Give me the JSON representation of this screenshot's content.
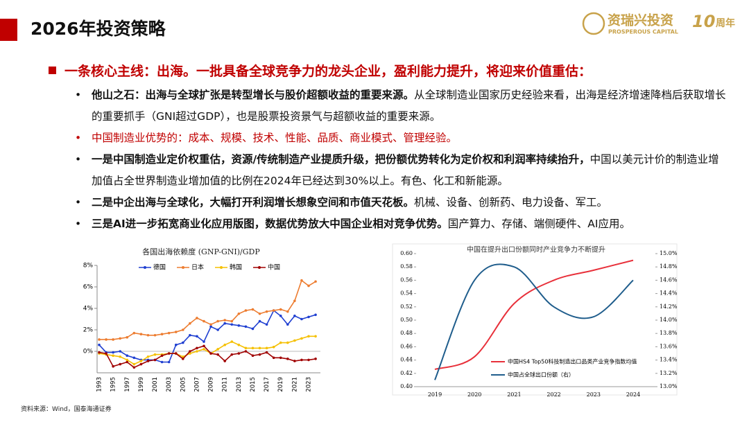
{
  "header": {
    "title": "2026年投资策略",
    "logo_name": "资瑞兴投资",
    "logo_en": "PROSPEROUS CAPITAL",
    "anniversary_number": "10",
    "anniversary_text": "周年"
  },
  "headline": "一条核心主线：出海。一批具备全球竞争力的龙头企业，盈利能力提升，将迎来价值重估：",
  "bullets": [
    {
      "segments": [
        {
          "text": "他山之石：出海与全球扩张是转型增长与股价超额收益的重要来源。",
          "bold": true
        },
        {
          "text": "从全球制造业国家历史经验来看，出海是经济增速降档后获取增长的重要抓手（GNI超过GDP），也是股票投资景气与超额收益的重要来源。",
          "bold": false
        }
      ]
    },
    {
      "color": "#c00000",
      "segments": [
        {
          "text": "中国制造业优势的：成本、规模、技术、性能、品质、商业模式、管理经验。",
          "bold": false
        }
      ]
    },
    {
      "segments": [
        {
          "text": "一是中国制造业定价权重估，资源/传统制造产业提质升级，把份额优势转化为定价权和利润率持续抬升，",
          "bold": true
        },
        {
          "text": "中国以美元计价的制造业增加值占全世界制造业增加值的比例在2024年已经达到30%以上。有色、化工和新能源。",
          "bold": false
        }
      ]
    },
    {
      "segments": [
        {
          "text": "二是中企出海与全球化，大幅打开利润增长想象空间和市值天花板。",
          "bold": true
        },
        {
          "text": "机械、设备、创新药、电力设备、军工。",
          "bold": false
        }
      ]
    },
    {
      "segments": [
        {
          "text": "三是AI进一步拓宽商业化应用版图，数据优势放大中国企业相对竞争优势。",
          "bold": true
        },
        {
          "text": "国产算力、存储、端侧硬件、AI应用。",
          "bold": false
        }
      ]
    }
  ],
  "source": "资料来源：Wind，国泰海通证券",
  "chart_data": [
    {
      "type": "line",
      "title": "各国出海依赖度 (GNP-GNI)/GDP",
      "categories": [
        "1993",
        null,
        "1995",
        null,
        "1997",
        null,
        "1999",
        null,
        "2001",
        null,
        "2003",
        null,
        "2005",
        null,
        "2007",
        null,
        "2009",
        null,
        "2011",
        null,
        "2013",
        null,
        "2015",
        null,
        "2017",
        null,
        "2019",
        null,
        "2021",
        null,
        "2023",
        null
      ],
      "ylim": [
        -2,
        8
      ],
      "yticks": [
        {
          "value": 0,
          "label": "0%"
        },
        {
          "value": 2,
          "label": "2%"
        },
        {
          "value": 4,
          "label": "4%"
        },
        {
          "value": 6,
          "label": "6%"
        },
        {
          "value": 8,
          "label": "8%"
        }
      ],
      "series": [
        {
          "name": "德国",
          "color": "#1f3fd1",
          "values": [
            0.6,
            -0.1,
            -0.1,
            0.0,
            -0.4,
            -0.6,
            -0.8,
            -0.8,
            -0.8,
            -1.0,
            -1.0,
            0.6,
            0.8,
            1.5,
            1.4,
            0.9,
            2.3,
            2.0,
            2.6,
            2.5,
            2.4,
            2.3,
            2.1,
            2.8,
            2.5,
            3.8,
            3.3,
            2.5,
            3.3,
            3.0,
            3.2,
            3.4
          ]
        },
        {
          "name": "日本",
          "color": "#ed7d31",
          "values": [
            1.1,
            1.1,
            1.1,
            1.2,
            1.3,
            1.7,
            1.6,
            1.5,
            1.5,
            1.6,
            1.7,
            1.8,
            2.0,
            2.6,
            3.1,
            2.8,
            2.5,
            2.8,
            2.9,
            2.8,
            3.5,
            3.8,
            3.9,
            3.5,
            3.7,
            3.8,
            3.9,
            3.7,
            4.7,
            6.6,
            6.1,
            6.5
          ]
        },
        {
          "name": "韩国",
          "color": "#f5c000",
          "values": [
            -0.2,
            -0.3,
            -0.4,
            -0.5,
            -0.8,
            -1.2,
            -0.9,
            -0.5,
            -0.3,
            -0.3,
            -0.2,
            -0.2,
            -0.5,
            -0.2,
            0.0,
            0.2,
            -0.2,
            0.2,
            0.6,
            0.9,
            0.6,
            0.3,
            0.3,
            0.3,
            0.3,
            0.4,
            0.8,
            0.8,
            1.0,
            1.2,
            1.4,
            1.4
          ]
        },
        {
          "name": "中国",
          "color": "#a00000",
          "values": [
            -0.1,
            -0.2,
            -1.4,
            -1.2,
            -1.0,
            -1.5,
            -1.2,
            -0.9,
            -0.8,
            -0.4,
            -0.2,
            -0.2,
            -0.7,
            0.0,
            0.3,
            0.5,
            -0.2,
            -0.3,
            -0.9,
            -0.3,
            -0.2,
            0.0,
            -0.4,
            -0.3,
            -0.1,
            -0.6,
            -0.6,
            -0.7,
            -0.9,
            -0.8,
            -0.8,
            -0.7
          ]
        }
      ]
    },
    {
      "type": "smooth-line",
      "title": "中国在提升出口份额同时产业竞争力不断提升",
      "categories": [
        "2019",
        "2020",
        "2021",
        "2022",
        "2023",
        "2024"
      ],
      "ylim": [
        0.4,
        0.6
      ],
      "yticks": [
        {
          "value": 0.4,
          "label": "0.40"
        },
        0.42,
        0.44,
        0.46,
        0.48,
        {
          "value": 0.5,
          "label": "0.50"
        },
        0.52,
        0.54,
        0.56,
        0.58,
        {
          "value": 0.6,
          "label": "0.60"
        }
      ],
      "y2lim": [
        13,
        15
      ],
      "y2ticks": [
        {
          "value": 13,
          "label": "13.0%"
        },
        {
          "value": 13.2,
          "label": "13.2%"
        },
        {
          "value": 13.4,
          "label": "13.4%"
        },
        {
          "value": 13.6,
          "label": "13.6%"
        },
        {
          "value": 13.8,
          "label": "13.8%"
        },
        {
          "value": 14,
          "label": "14.0%"
        },
        {
          "value": 14.2,
          "label": "14.2%"
        },
        {
          "value": 14.4,
          "label": "14.4%"
        },
        {
          "value": 14.6,
          "label": "14.6%"
        },
        {
          "value": 14.8,
          "label": "14.8%"
        },
        {
          "value": 15,
          "label": "15.0%"
        }
      ],
      "series": [
        {
          "name": "中国HS4 Top50科技制造出口品类产业竞争指数均值",
          "color": "#e8303a",
          "values": [
            0.426,
            0.445,
            0.525,
            0.56,
            0.575,
            0.59
          ]
        },
        {
          "name": "中国占全球出口份额（右）",
          "color": "#1f5d8c",
          "axis": "y2",
          "values": [
            13.1,
            14.6,
            14.8,
            14.2,
            14.05,
            14.6
          ]
        }
      ]
    }
  ]
}
